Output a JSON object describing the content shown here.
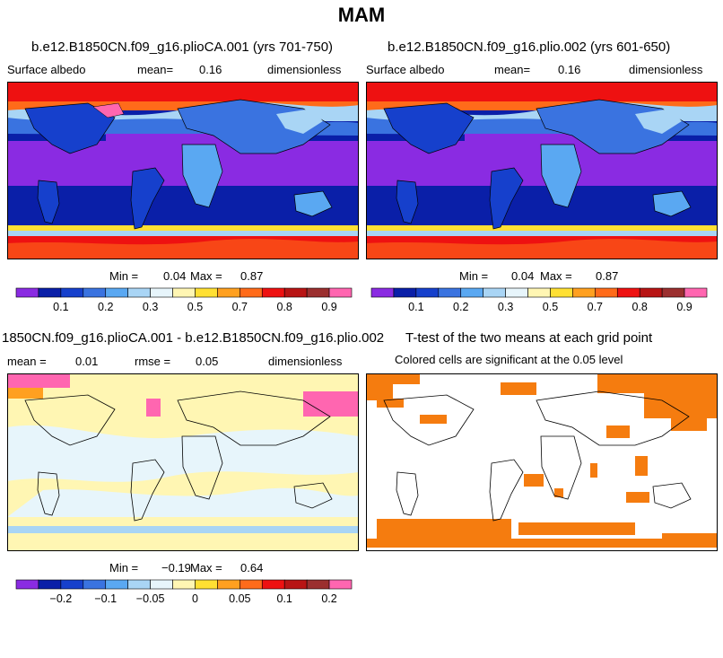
{
  "page": {
    "title": "MAM"
  },
  "chart_data": [
    {
      "type": "heatmap",
      "title": "b.e12.B1850CN.f09_g16.plioCA.001 (yrs 701-750)",
      "variable": "Surface albedo",
      "stat_label": "mean=",
      "stat_value": "0.16",
      "units": "dimensionless",
      "min_label": "Min =",
      "min_value": "0.04",
      "max_label": "Max =",
      "max_value": "0.87",
      "colorbar": {
        "ticks": [
          "0.1",
          "0.2",
          "0.3",
          "0.5",
          "0.7",
          "0.8",
          "0.9"
        ],
        "tick_positions": [
          2,
          4,
          6,
          8,
          10,
          12,
          14
        ],
        "colors": [
          "#8a2be2",
          "#0a1fa8",
          "#1640cc",
          "#3a73e0",
          "#5aa8f2",
          "#a9d5f5",
          "#e7f5fb",
          "#fff6b3",
          "#ffe033",
          "#ffa020",
          "#ff6b1a",
          "#ee1111",
          "#b81414",
          "#9b2f2f",
          "#ff66b0"
        ]
      }
    },
    {
      "type": "heatmap",
      "title": "b.e12.B1850CN.f09_g16.plio.002 (yrs 601-650)",
      "variable": "Surface albedo",
      "stat_label": "mean=",
      "stat_value": "0.16",
      "units": "dimensionless",
      "min_label": "Min =",
      "min_value": "0.04",
      "max_label": "Max =",
      "max_value": "0.87",
      "colorbar": {
        "ticks": [
          "0.1",
          "0.2",
          "0.3",
          "0.5",
          "0.7",
          "0.8",
          "0.9"
        ],
        "tick_positions": [
          2,
          4,
          6,
          8,
          10,
          12,
          14
        ],
        "colors": [
          "#8a2be2",
          "#0a1fa8",
          "#1640cc",
          "#3a73e0",
          "#5aa8f2",
          "#a9d5f5",
          "#e7f5fb",
          "#fff6b3",
          "#ffe033",
          "#ffa020",
          "#ff6b1a",
          "#ee1111",
          "#b81414",
          "#9b2f2f",
          "#ff66b0"
        ]
      }
    },
    {
      "type": "heatmap",
      "title": "1850CN.f09_g16.plioCA.001 - b.e12.B1850CN.f09_g16.plio.002",
      "stat_label": "mean =",
      "stat_value": "0.01",
      "rmse_label": "rmse =",
      "rmse_value": "0.05",
      "units": "dimensionless",
      "min_label": "Min =",
      "min_value": "−0.19",
      "max_label": "Max =",
      "max_value": "0.64",
      "colorbar": {
        "ticks": [
          "−0.2",
          "−0.1",
          "−0.05",
          "0",
          "0.05",
          "0.1",
          "0.2"
        ],
        "tick_positions": [
          2,
          4,
          6,
          8,
          10,
          12,
          14
        ],
        "colors": [
          "#8a2be2",
          "#0a1fa8",
          "#1640cc",
          "#3a73e0",
          "#5aa8f2",
          "#a9d5f5",
          "#e7f5fb",
          "#fff6b3",
          "#ffe033",
          "#ffa020",
          "#ff6b1a",
          "#ee1111",
          "#b81414",
          "#9b2f2f",
          "#ff66b0"
        ]
      }
    },
    {
      "type": "heatmap",
      "title": "T-test of the two means at each grid point",
      "subtitle": "Colored cells are significant at the 0.05 level",
      "significant_color": "#f57c0f"
    }
  ]
}
